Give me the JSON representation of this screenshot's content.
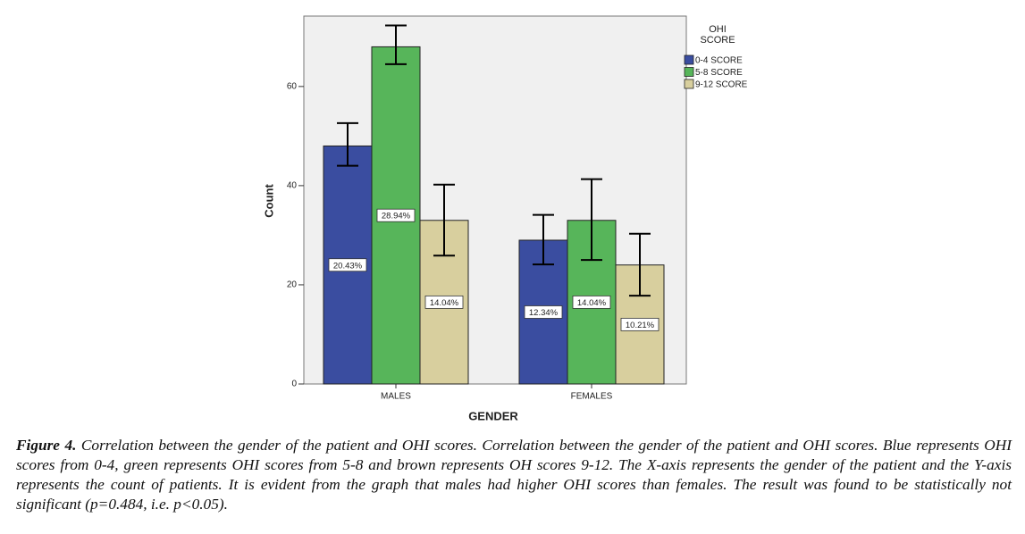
{
  "chart_data": {
    "type": "bar",
    "categories": [
      "MALES",
      "FEMALES"
    ],
    "x_label": "GENDER",
    "y_label": "Count",
    "legend_title": "OHI SCORE",
    "series": [
      {
        "name": "0-4 SCORE",
        "color": "#3a4da0",
        "values": [
          48,
          29
        ],
        "error_low": [
          44,
          24.1
        ],
        "error_high": [
          52.6,
          34.1
        ],
        "labels": [
          "20.43%",
          "12.34%"
        ]
      },
      {
        "name": "5-8 SCORE",
        "color": "#57b55a",
        "values": [
          68,
          33
        ],
        "error_low": [
          64.5,
          25
        ],
        "error_high": [
          72.3,
          41.3
        ],
        "labels": [
          "28.94%",
          "14.04%"
        ]
      },
      {
        "name": "9-12 SCORE",
        "color": "#d8cf9e",
        "values": [
          33,
          24
        ],
        "error_low": [
          25.9,
          17.8
        ],
        "error_high": [
          40.2,
          30.3
        ],
        "labels": [
          "14.04%",
          "10.21%"
        ]
      }
    ],
    "ylim": [
      0,
      74.2
    ],
    "yticks": [
      0,
      20,
      40,
      60
    ]
  },
  "caption": {
    "label": "Figure 4.",
    "text": "Correlation between the gender of the patient and OHI scores. Correlation between the gender of the patient and OHI scores. Blue represents OHI scores from 0-4, green represents OHI scores from 5-8 and brown represents OH scores 9-12. The X-axis represents the gender of the patient and the Y-axis represents the count of patients. It is evident from the graph that males had higher OHI scores than females. The result was found to be statistically not significant (p=0.484, i.e. p<0.05)."
  }
}
